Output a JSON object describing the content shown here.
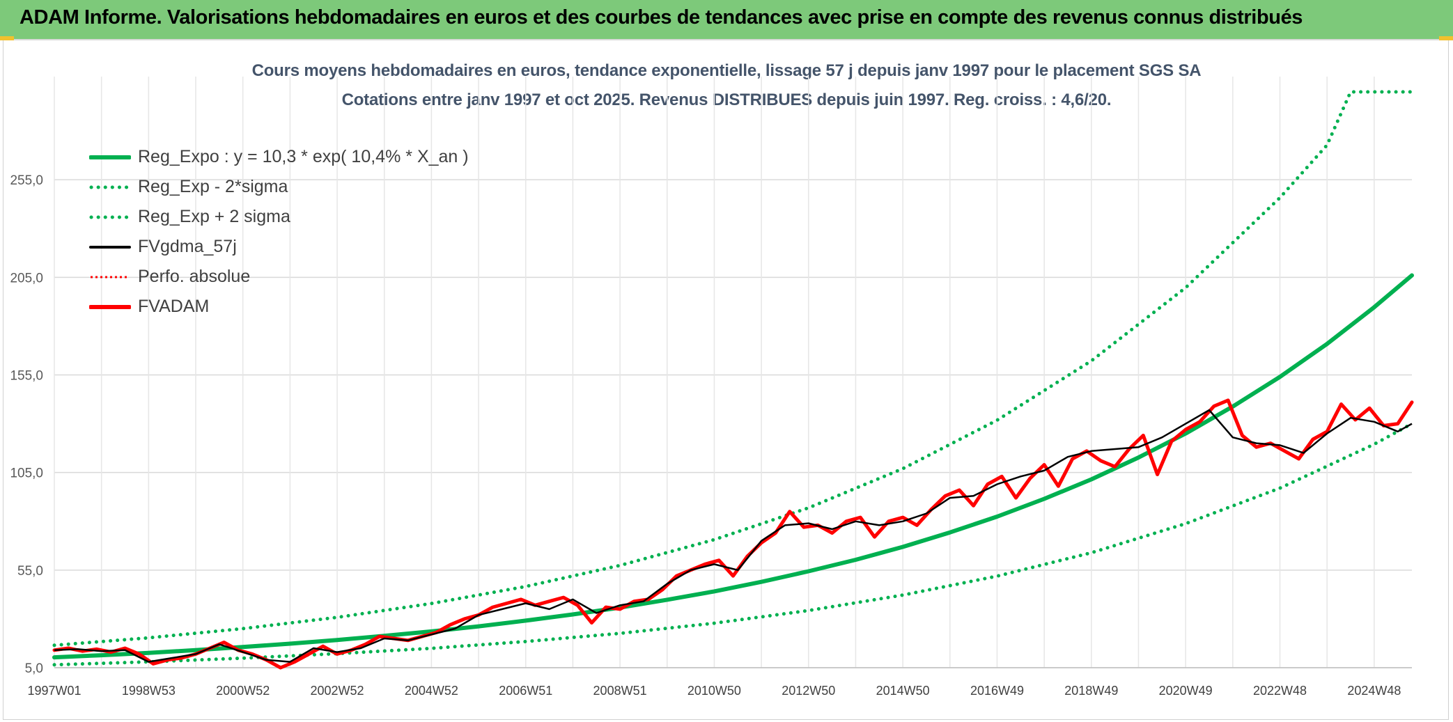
{
  "banner": {
    "title": "ADAM Informe. Valorisations hebdomadaires en euros et des courbes de tendances avec prise en compte des revenus connus distribués"
  },
  "colors": {
    "banner_bg": "#7dc97a",
    "green": "#00b050",
    "black": "#000000",
    "red": "#ff0000",
    "grid": "#d9d9d9"
  },
  "chart_data": {
    "type": "line",
    "title": "Cours moyens hebdomadaires en euros, tendance exponentielle, lissage 57 j depuis janv 1997 pour le placement SGS SA",
    "subtitle": "Cotations entre janv 1997 et oct 2025. Revenus DISTRIBUES depuis juin 1997. Reg. croiss. : 4,6/20.",
    "x_range_years": [
      1997.0,
      2025.8
    ],
    "ylim": [
      5.0,
      305.0
    ],
    "y_ticks": [
      "5,0",
      "55,0",
      "105,0",
      "155,0",
      "205,0",
      "255,0"
    ],
    "y_tick_values": [
      5,
      55,
      105,
      155,
      205,
      255
    ],
    "x_ticks": [
      "1997W01",
      "1998W53",
      "2000W52",
      "2002W52",
      "2004W52",
      "2006W51",
      "2008W51",
      "2010W50",
      "2012W50",
      "2014W50",
      "2016W49",
      "2018W49",
      "2020W49",
      "2022W48",
      "2024W48"
    ],
    "x_tick_years": [
      1997.0,
      1999.0,
      2001.0,
      2003.0,
      2005.0,
      2007.0,
      2009.0,
      2011.0,
      2013.0,
      2015.0,
      2017.0,
      2019.0,
      2021.0,
      2023.0,
      2025.0
    ],
    "legend": [
      {
        "label": "Reg_Expo : y = 10,3 * exp( 10,4% *  X_an )",
        "color": "#00b050",
        "style": "solid"
      },
      {
        "label": "Reg_Exp - 2*sigma",
        "color": "#00b050",
        "style": "dotted"
      },
      {
        "label": "Reg_Exp + 2 sigma",
        "color": "#00b050",
        "style": "dotted"
      },
      {
        "label": "FVgdma_57j",
        "color": "#000000",
        "style": "solid"
      },
      {
        "label": "Perfo. absolue",
        "color": "#ff0000",
        "style": "dotted"
      },
      {
        "label": "FVADAM",
        "color": "#ff0000",
        "style": "solid"
      }
    ],
    "series": [
      {
        "name": "Reg_Expo",
        "x": [
          1997.0,
          1998.0,
          1999.0,
          2000.0,
          2001.0,
          2002.0,
          2003.0,
          2004.0,
          2005.0,
          2006.0,
          2007.0,
          2008.0,
          2009.0,
          2010.0,
          2011.0,
          2012.0,
          2013.0,
          2014.0,
          2015.0,
          2016.0,
          2017.0,
          2018.0,
          2019.0,
          2020.0,
          2021.0,
          2022.0,
          2023.0,
          2024.0,
          2025.0,
          2025.8
        ],
        "y": [
          10.3,
          11.4,
          12.6,
          14.0,
          15.6,
          17.3,
          19.2,
          21.3,
          23.6,
          26.2,
          29.1,
          32.3,
          35.8,
          39.8,
          44.1,
          49.0,
          54.4,
          60.3,
          66.9,
          74.3,
          82.4,
          91.5,
          101.5,
          112.7,
          125.0,
          138.8,
          154.0,
          170.9,
          189.7,
          206.0
        ]
      },
      {
        "name": "Reg_Exp - 2*sigma",
        "x": [
          1997.0,
          1999.0,
          2001.0,
          2003.0,
          2005.0,
          2007.0,
          2009.0,
          2011.0,
          2013.0,
          2015.0,
          2017.0,
          2019.0,
          2021.0,
          2023.0,
          2025.0,
          2025.8
        ],
        "y": [
          6.5,
          8.0,
          9.9,
          12.2,
          14.9,
          18.4,
          22.6,
          27.8,
          34.3,
          42.2,
          51.9,
          63.9,
          78.8,
          97.0,
          119.5,
          130.0
        ]
      },
      {
        "name": "Reg_Exp + 2 sigma",
        "x": [
          1997.0,
          1999.0,
          2001.0,
          2003.0,
          2005.0,
          2007.0,
          2009.0,
          2011.0,
          2013.0,
          2015.0,
          2017.0,
          2019.0,
          2021.0,
          2023.0,
          2024.0,
          2024.5,
          2025.8
        ],
        "y": [
          16.5,
          20.3,
          25.0,
          30.8,
          37.9,
          46.6,
          57.4,
          70.6,
          86.9,
          107.0,
          131.8,
          162.2,
          199.7,
          245.8,
          272.8,
          300.0,
          300.0
        ]
      },
      {
        "name": "FVgdma_57j",
        "x": [
          1997.0,
          1997.5,
          1998.0,
          1998.5,
          1999.0,
          1999.5,
          2000.0,
          2000.5,
          2001.0,
          2001.5,
          2002.0,
          2002.5,
          2003.0,
          2003.5,
          2004.0,
          2004.5,
          2005.0,
          2005.5,
          2006.0,
          2006.5,
          2007.0,
          2007.5,
          2008.0,
          2008.5,
          2009.0,
          2009.5,
          2010.0,
          2010.5,
          2011.0,
          2011.5,
          2012.0,
          2012.5,
          2013.0,
          2013.5,
          2014.0,
          2014.5,
          2015.0,
          2015.5,
          2016.0,
          2016.5,
          2017.0,
          2017.5,
          2018.0,
          2018.5,
          2019.0,
          2019.5,
          2020.0,
          2020.5,
          2021.0,
          2021.5,
          2022.0,
          2022.5,
          2023.0,
          2023.5,
          2024.0,
          2024.5,
          2025.0,
          2025.5,
          2025.8
        ],
        "y": [
          14.0,
          14.5,
          13.5,
          14.0,
          8.0,
          10.0,
          12.0,
          17.0,
          13.0,
          9.0,
          8.0,
          15.0,
          13.0,
          15.0,
          20.0,
          19.0,
          22.0,
          25.0,
          32.0,
          35.0,
          38.0,
          35.0,
          40.0,
          33.0,
          37.0,
          39.0,
          48.0,
          55.0,
          58.0,
          55.0,
          70.0,
          78.0,
          79.0,
          76.0,
          80.0,
          78.0,
          80.0,
          84.0,
          92.0,
          93.0,
          99.0,
          103.0,
          106.0,
          113.0,
          116.0,
          117.0,
          118.0,
          123.0,
          130.0,
          137.0,
          123.0,
          120.0,
          119.0,
          115.0,
          125.0,
          133.0,
          131.0,
          126.0,
          130.0
        ]
      },
      {
        "name": "Perfo. absolue",
        "x": [],
        "y": []
      },
      {
        "name": "FVADAM",
        "x": [
          1997.0,
          1997.3,
          1997.6,
          1997.9,
          1998.2,
          1998.5,
          1998.8,
          1999.1,
          1999.4,
          1999.7,
          2000.0,
          2000.3,
          2000.6,
          2000.9,
          2001.2,
          2001.5,
          2001.8,
          2002.1,
          2002.4,
          2002.7,
          2003.0,
          2003.3,
          2003.6,
          2003.9,
          2004.2,
          2004.5,
          2004.8,
          2005.1,
          2005.4,
          2005.7,
          2006.0,
          2006.3,
          2006.6,
          2006.9,
          2007.2,
          2007.5,
          2007.8,
          2008.1,
          2008.4,
          2008.7,
          2009.0,
          2009.3,
          2009.6,
          2009.9,
          2010.2,
          2010.5,
          2010.8,
          2011.1,
          2011.4,
          2011.7,
          2012.0,
          2012.3,
          2012.6,
          2012.9,
          2013.2,
          2013.5,
          2013.8,
          2014.1,
          2014.4,
          2014.7,
          2015.0,
          2015.3,
          2015.6,
          2015.9,
          2016.2,
          2016.5,
          2016.8,
          2017.1,
          2017.4,
          2017.7,
          2018.0,
          2018.3,
          2018.6,
          2018.9,
          2019.2,
          2019.5,
          2019.8,
          2020.1,
          2020.4,
          2020.7,
          2021.0,
          2021.3,
          2021.6,
          2021.9,
          2022.2,
          2022.5,
          2022.8,
          2023.1,
          2023.4,
          2023.7,
          2024.0,
          2024.3,
          2024.6,
          2024.9,
          2025.2,
          2025.5,
          2025.8
        ],
        "y": [
          14.0,
          15.0,
          13.5,
          14.5,
          13.0,
          15.0,
          12.0,
          7.0,
          9.0,
          10.0,
          12.0,
          15.0,
          18.0,
          14.0,
          12.0,
          9.0,
          5.0,
          8.0,
          12.0,
          16.0,
          12.0,
          14.0,
          17.0,
          21.0,
          20.0,
          19.0,
          21.0,
          23.0,
          27.0,
          30.0,
          32.0,
          36.0,
          38.0,
          40.0,
          37.0,
          39.0,
          41.0,
          37.0,
          28.0,
          36.0,
          35.0,
          39.0,
          40.0,
          45.0,
          52.0,
          55.0,
          58.0,
          60.0,
          52.0,
          62.0,
          69.0,
          74.0,
          85.0,
          77.0,
          78.0,
          74.0,
          80.0,
          82.0,
          72.0,
          80.0,
          82.0,
          78.0,
          86.0,
          93.0,
          96.0,
          88.0,
          99.0,
          103.0,
          92.0,
          102.0,
          109.0,
          98.0,
          112.0,
          116.0,
          111.0,
          108.0,
          117.0,
          124.0,
          104.0,
          121.0,
          127.0,
          131.0,
          139.0,
          142.0,
          124.0,
          118.0,
          120.0,
          116.0,
          112.0,
          122.0,
          126.0,
          140.0,
          132.0,
          138.0,
          129.0,
          130.0,
          141.0
        ]
      }
    ]
  }
}
